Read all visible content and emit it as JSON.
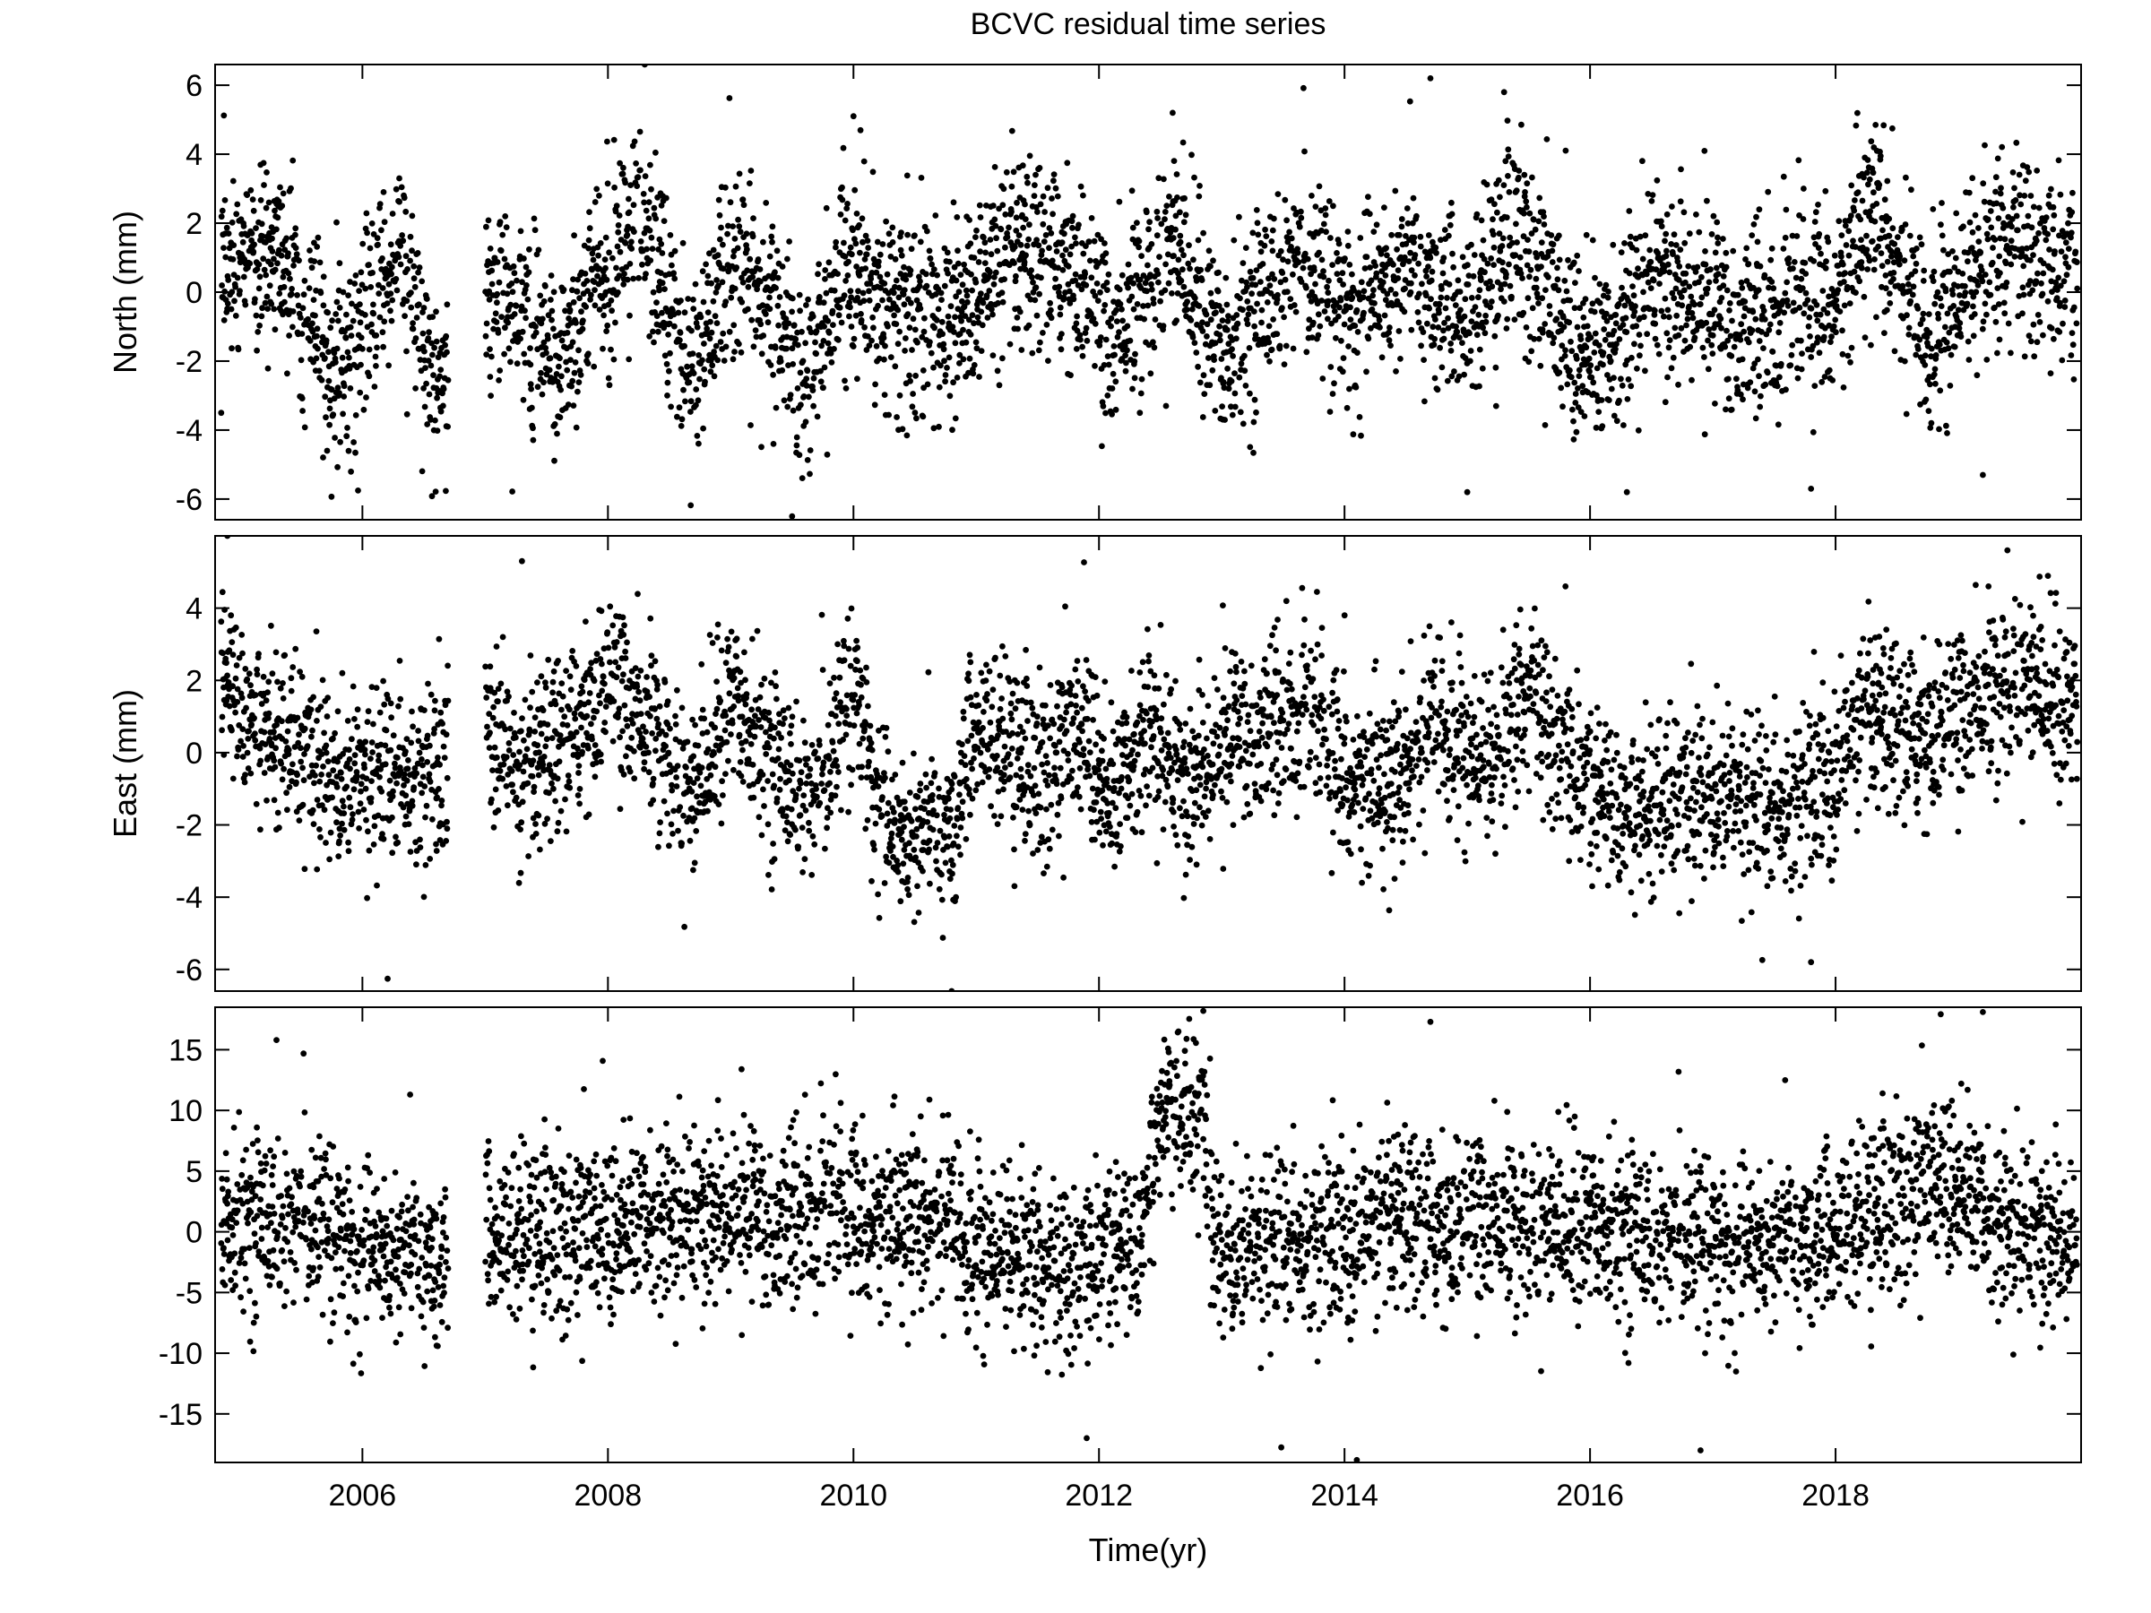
{
  "title": "BCVC residual time series",
  "xlabel": "Time(yr)",
  "chart_data": [
    {
      "type": "scatter",
      "panel": "top",
      "title": "BCVC residual time series",
      "xlabel": "",
      "ylabel": "North (mm)",
      "xlim": [
        2004.8,
        2020.0
      ],
      "ylim": [
        -6.6,
        6.6
      ],
      "x_ticks": [
        2006,
        2008,
        2010,
        2012,
        2014,
        2016,
        2018
      ],
      "x_tick_labels": [],
      "y_ticks": [
        -6,
        -4,
        -2,
        0,
        2,
        4,
        6
      ],
      "y_tick_labels": [
        "-6",
        "-4",
        "-2",
        "0",
        "2",
        "4",
        "6"
      ],
      "grid": false,
      "legend": "none",
      "marker_color": "#000000",
      "data_gap": [
        2006.7,
        2007.0
      ],
      "noise_sd": 1.35,
      "trend_points": [
        [
          2004.85,
          1.0
        ],
        [
          2005.3,
          1.2
        ],
        [
          2005.8,
          -2.4
        ],
        [
          2006.0,
          -1.0
        ],
        [
          2006.3,
          1.3
        ],
        [
          2006.55,
          -2.6
        ],
        [
          2007.1,
          0.3
        ],
        [
          2007.6,
          -2.4
        ],
        [
          2007.9,
          0.4
        ],
        [
          2008.1,
          2.0
        ],
        [
          2008.4,
          1.0
        ],
        [
          2008.7,
          -2.5
        ],
        [
          2009.0,
          1.0
        ],
        [
          2009.3,
          -0.5
        ],
        [
          2009.6,
          -2.8
        ],
        [
          2009.9,
          0.5
        ],
        [
          2010.4,
          -0.5
        ],
        [
          2010.8,
          -1.0
        ],
        [
          2011.2,
          0.8
        ],
        [
          2011.8,
          0.9
        ],
        [
          2012.1,
          -1.5
        ],
        [
          2012.6,
          1.6
        ],
        [
          2013.0,
          -1.8
        ],
        [
          2013.6,
          1.0
        ],
        [
          2014.0,
          -0.5
        ],
        [
          2014.5,
          0.8
        ],
        [
          2015.0,
          -0.8
        ],
        [
          2015.4,
          2.0
        ],
        [
          2015.8,
          -1.0
        ],
        [
          2016.1,
          -2.0
        ],
        [
          2016.5,
          0.5
        ],
        [
          2017.0,
          -0.5
        ],
        [
          2017.5,
          -0.8
        ],
        [
          2018.0,
          0.0
        ],
        [
          2018.3,
          2.4
        ],
        [
          2018.7,
          -1.2
        ],
        [
          2019.0,
          0.0
        ],
        [
          2019.5,
          1.3
        ],
        [
          2019.97,
          0.2
        ]
      ],
      "notable_points": [
        [
          2004.85,
          -3.5
        ],
        [
          2006.3,
          3.3
        ],
        [
          2008.3,
          6.6
        ],
        [
          2009.5,
          -6.5
        ],
        [
          2010.0,
          5.1
        ],
        [
          2012.6,
          5.2
        ],
        [
          2014.7,
          6.2
        ],
        [
          2015.0,
          -5.8
        ],
        [
          2015.3,
          5.8
        ],
        [
          2016.3,
          -5.8
        ],
        [
          2017.8,
          -5.7
        ],
        [
          2019.2,
          -5.3
        ]
      ]
    },
    {
      "type": "scatter",
      "panel": "middle",
      "xlabel": "",
      "ylabel": "East (mm)",
      "xlim": [
        2004.8,
        2020.0
      ],
      "ylim": [
        -6.6,
        6.0
      ],
      "x_ticks": [
        2006,
        2008,
        2010,
        2012,
        2014,
        2016,
        2018
      ],
      "x_tick_labels": [],
      "y_ticks": [
        -6,
        -4,
        -2,
        0,
        2,
        4
      ],
      "y_tick_labels": [
        "-6",
        "-4",
        "-2",
        "0",
        "2",
        "4"
      ],
      "grid": false,
      "legend": "none",
      "marker_color": "#000000",
      "data_gap": [
        2006.7,
        2007.0
      ],
      "noise_sd": 1.2,
      "trend_points": [
        [
          2004.85,
          2.0
        ],
        [
          2005.3,
          0.5
        ],
        [
          2005.8,
          -0.5
        ],
        [
          2006.3,
          -0.5
        ],
        [
          2006.65,
          -0.5
        ],
        [
          2007.0,
          1.5
        ],
        [
          2007.3,
          -1.0
        ],
        [
          2007.7,
          0.5
        ],
        [
          2008.0,
          2.0
        ],
        [
          2008.4,
          0.5
        ],
        [
          2008.7,
          -1.2
        ],
        [
          2009.0,
          1.5
        ],
        [
          2009.4,
          -0.5
        ],
        [
          2009.7,
          -1.2
        ],
        [
          2010.0,
          1.8
        ],
        [
          2010.3,
          -2.2
        ],
        [
          2010.8,
          -2.0
        ],
        [
          2011.0,
          0.8
        ],
        [
          2011.5,
          -0.5
        ],
        [
          2011.9,
          0.8
        ],
        [
          2012.1,
          -1.5
        ],
        [
          2012.4,
          0.8
        ],
        [
          2012.7,
          -1.0
        ],
        [
          2013.2,
          0.8
        ],
        [
          2013.7,
          1.0
        ],
        [
          2014.0,
          -0.5
        ],
        [
          2014.4,
          -1.0
        ],
        [
          2014.8,
          1.0
        ],
        [
          2015.2,
          -0.5
        ],
        [
          2015.5,
          1.5
        ],
        [
          2016.0,
          -1.2
        ],
        [
          2016.5,
          -1.5
        ],
        [
          2017.0,
          -0.8
        ],
        [
          2017.5,
          -1.5
        ],
        [
          2018.0,
          -0.5
        ],
        [
          2018.2,
          0.8
        ],
        [
          2018.6,
          0.5
        ],
        [
          2019.0,
          1.0
        ],
        [
          2019.5,
          2.2
        ],
        [
          2019.97,
          1.0
        ]
      ],
      "notable_points": [
        [
          2004.9,
          6.0
        ],
        [
          2007.3,
          5.3
        ],
        [
          2010.8,
          -6.6
        ],
        [
          2014.0,
          3.8
        ],
        [
          2015.8,
          4.6
        ],
        [
          2017.8,
          -5.8
        ],
        [
          2019.4,
          5.6
        ]
      ]
    },
    {
      "type": "scatter",
      "panel": "bottom",
      "xlabel": "Time(yr)",
      "ylabel": "",
      "xlim": [
        2004.8,
        2020.0
      ],
      "ylim": [
        -19.0,
        18.5
      ],
      "x_ticks": [
        2006,
        2008,
        2010,
        2012,
        2014,
        2016,
        2018
      ],
      "x_tick_labels": [
        "2006",
        "2008",
        "2010",
        "2012",
        "2014",
        "2016",
        "2018"
      ],
      "y_ticks": [
        -15,
        -10,
        -5,
        0,
        5,
        10,
        15
      ],
      "y_tick_labels": [
        "-15",
        "-10",
        "-5",
        "0",
        "5",
        "10",
        "15"
      ],
      "grid": false,
      "legend": "none",
      "marker_color": "#000000",
      "data_gap": [
        2006.7,
        2007.0
      ],
      "noise_sd": 3.6,
      "trend_points": [
        [
          2004.85,
          1.0
        ],
        [
          2005.5,
          1.0
        ],
        [
          2006.0,
          -1.0
        ],
        [
          2006.65,
          -2.0
        ],
        [
          2007.0,
          -0.5
        ],
        [
          2008.0,
          0.5
        ],
        [
          2009.0,
          1.5
        ],
        [
          2010.0,
          1.5
        ],
        [
          2010.8,
          0.5
        ],
        [
          2011.6,
          -4.0
        ],
        [
          2012.3,
          -1.0
        ],
        [
          2012.5,
          9.5
        ],
        [
          2012.85,
          9.5
        ],
        [
          2012.95,
          -1.0
        ],
        [
          2014.0,
          0.0
        ],
        [
          2015.0,
          1.0
        ],
        [
          2016.0,
          0.5
        ],
        [
          2017.0,
          -1.0
        ],
        [
          2018.0,
          0.0
        ],
        [
          2018.9,
          5.0
        ],
        [
          2019.3,
          0.5
        ],
        [
          2019.97,
          -1.0
        ]
      ],
      "notable_points": [
        [
          2005.3,
          15.8
        ],
        [
          2011.9,
          -17.0
        ],
        [
          2012.85,
          18.2
        ],
        [
          2014.1,
          -18.8
        ],
        [
          2014.7,
          17.3
        ],
        [
          2016.9,
          -18.0
        ],
        [
          2019.2,
          18.1
        ]
      ]
    }
  ]
}
